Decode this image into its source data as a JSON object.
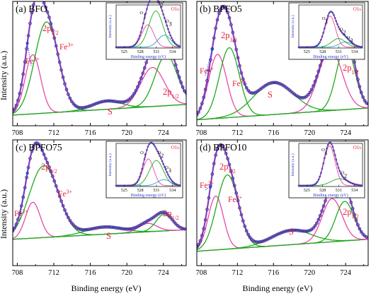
{
  "figure": {
    "ylabel": "Intensity (a.u.)",
    "xlabel": "Binding energy (eV)",
    "colors": {
      "data": "#3a3a9a",
      "envelope": "#8a3fb8",
      "fe2": "#e84aa6",
      "fe3": "#1faa1f",
      "satellite": "#1faa1f",
      "label_red": "#e8213a",
      "inset_o1": "#e84aa6",
      "inset_o2": "#1faa1f",
      "inset_o3": "#2aa2c8",
      "inset_label": "#e8213a",
      "inset_axis_label": "#2a3fd0"
    }
  },
  "chart_data": [
    {
      "type": "line",
      "panel": "(a) BFO",
      "x_ticks": [
        "708",
        "712",
        "716",
        "720",
        "724"
      ],
      "xlim": [
        707.5,
        726.5
      ],
      "ylim": [
        0,
        1.05
      ],
      "peak_labels": {
        "fe2": "Fe2+",
        "fe3": "Fe3+",
        "p32": "2p3/2",
        "p12": "2p1/2",
        "sat": "S"
      },
      "components": [
        {
          "name": "Fe2+",
          "center": 709.7,
          "width": 0.85,
          "amplitude": 0.5
        },
        {
          "name": "Fe3+",
          "center": 711.2,
          "width": 1.3,
          "amplitude": 0.77
        },
        {
          "name": "S",
          "center": 717.8,
          "width": 1.6,
          "amplitude": 0.07
        },
        {
          "name": "2p1/2 Fe2+",
          "center": 722.8,
          "width": 1.3,
          "amplitude": 0.33
        },
        {
          "name": "2p1/2 Fe3+",
          "center": 724.3,
          "width": 1.2,
          "amplitude": 0.43
        }
      ],
      "background": [
        0.09,
        0.18
      ],
      "inset": {
        "label": "O1s",
        "ylabel": "Intensity (a.u.)",
        "xlabel": "Binding energy (eV)",
        "x_ticks": [
          "525",
          "528",
          "531",
          "534"
        ],
        "xlim": [
          523.5,
          535.5
        ],
        "component_labels": [
          "O1",
          "O2",
          "O3"
        ],
        "components": [
          {
            "name": "O1",
            "center": 529.4,
            "width": 1.1,
            "amplitude": 0.52
          },
          {
            "name": "O2",
            "center": 530.9,
            "width": 1.3,
            "amplitude": 0.84
          },
          {
            "name": "O3",
            "center": 532.5,
            "width": 1.2,
            "amplitude": 0.28
          }
        ]
      }
    },
    {
      "type": "line",
      "panel": "(b) BPFO5",
      "x_ticks": [
        "708",
        "712",
        "716",
        "720",
        "724"
      ],
      "xlim": [
        707.5,
        726.5
      ],
      "ylim": [
        0,
        1.05
      ],
      "peak_labels": {
        "fe2": "Fe2+",
        "fe3": "Fe3+",
        "p32": "2p3/2",
        "p12": "2p1/2",
        "sat": "S"
      },
      "components": [
        {
          "name": "Fe2+",
          "center": 709.8,
          "width": 1.0,
          "amplitude": 0.54
        },
        {
          "name": "Fe3+",
          "center": 711.1,
          "width": 1.1,
          "amplitude": 0.59
        },
        {
          "name": "S",
          "center": 716.0,
          "width": 2.2,
          "amplitude": 0.27
        },
        {
          "name": "2p1/2 Fe2+",
          "center": 722.3,
          "width": 1.3,
          "amplitude": 0.52
        },
        {
          "name": "2p1/2 Fe3+",
          "center": 724.0,
          "width": 1.0,
          "amplitude": 0.54
        }
      ],
      "background": [
        0.05,
        0.15
      ],
      "inset": {
        "label": "O1s",
        "ylabel": "Intensity (a.u.)",
        "xlabel": "Binding energy (eV)",
        "x_ticks": [
          "525",
          "528",
          "531",
          "534"
        ],
        "xlim": [
          523.5,
          535.5
        ],
        "component_labels": [
          "O1",
          "O2",
          "O3"
        ],
        "components": [
          {
            "name": "O1",
            "center": 529.4,
            "width": 1.0,
            "amplitude": 0.72
          },
          {
            "name": "O2",
            "center": 531.0,
            "width": 1.3,
            "amplitude": 0.2
          },
          {
            "name": "O3",
            "center": 532.3,
            "width": 1.2,
            "amplitude": 0.12
          }
        ]
      }
    },
    {
      "type": "line",
      "panel": "(c) BPFO75",
      "x_ticks": [
        "708",
        "712",
        "716",
        "720",
        "724"
      ],
      "xlim": [
        707.5,
        726.5
      ],
      "ylim": [
        0,
        1.05
      ],
      "peak_labels": {
        "fe2": "Fe2+",
        "fe3": "Fe3+",
        "p32": "2p3/2",
        "p12": "2p1/2",
        "sat": "S"
      },
      "components": [
        {
          "name": "Fe2+",
          "center": 709.7,
          "width": 0.8,
          "amplitude": 0.3
        },
        {
          "name": "Fe3+",
          "center": 710.9,
          "width": 1.6,
          "amplitude": 0.6
        },
        {
          "name": "S",
          "center": 717.5,
          "width": 2.0,
          "amplitude": 0.06
        },
        {
          "name": "2p1/2 Fe2+",
          "center": 722.3,
          "width": 1.0,
          "amplitude": 0.07
        },
        {
          "name": "2p1/2 Fe3+",
          "center": 724.1,
          "width": 0.9,
          "amplitude": 0.14
        }
      ],
      "background": [
        0.22,
        0.3
      ],
      "inset": {
        "label": "O1s",
        "ylabel": "Intensity (a.u.)",
        "xlabel": "Binding energy (eV)",
        "x_ticks": [
          "525",
          "528",
          "531",
          "534"
        ],
        "xlim": [
          523.5,
          535.5
        ],
        "component_labels": [
          "O1",
          "O2",
          "O3"
        ],
        "components": [
          {
            "name": "O1",
            "center": 529.5,
            "width": 1.0,
            "amplitude": 0.62
          },
          {
            "name": "O2",
            "center": 531.0,
            "width": 1.3,
            "amplitude": 0.58
          },
          {
            "name": "O3",
            "center": 532.4,
            "width": 1.2,
            "amplitude": 0.14
          }
        ]
      }
    },
    {
      "type": "line",
      "panel": "(d) BPFO10",
      "x_ticks": [
        "708",
        "712",
        "716",
        "720",
        "724"
      ],
      "xlim": [
        707.5,
        726.5
      ],
      "ylim": [
        0,
        1.05
      ],
      "peak_labels": {
        "fe2": "Fe2+",
        "fe3": "Fe3+",
        "p32": "2p3/2",
        "p12": "2p1/2",
        "sat": "S"
      },
      "components": [
        {
          "name": "Fe2+",
          "center": 709.6,
          "width": 0.85,
          "amplitude": 0.45
        },
        {
          "name": "Fe3+",
          "center": 710.9,
          "width": 1.2,
          "amplitude": 0.62
        },
        {
          "name": "S",
          "center": 718.0,
          "width": 2.2,
          "amplitude": 0.12
        },
        {
          "name": "2p1/2 Fe2+",
          "center": 722.5,
          "width": 1.1,
          "amplitude": 0.36
        },
        {
          "name": "2p1/2 Fe3+",
          "center": 723.9,
          "width": 1.0,
          "amplitude": 0.33
        }
      ],
      "background": [
        0.12,
        0.22
      ],
      "inset": {
        "label": "O1s",
        "ylabel": "Intensity (a.u.)",
        "xlabel": "Binding energy (eV)",
        "x_ticks": [
          "525",
          "528",
          "531",
          "534"
        ],
        "xlim": [
          523.5,
          535.5
        ],
        "component_labels": [
          "O1",
          "O2"
        ],
        "components": [
          {
            "name": "O1",
            "center": 529.3,
            "width": 1.05,
            "amplitude": 0.92
          },
          {
            "name": "O2",
            "center": 531.2,
            "width": 1.6,
            "amplitude": 0.16
          }
        ]
      }
    }
  ]
}
